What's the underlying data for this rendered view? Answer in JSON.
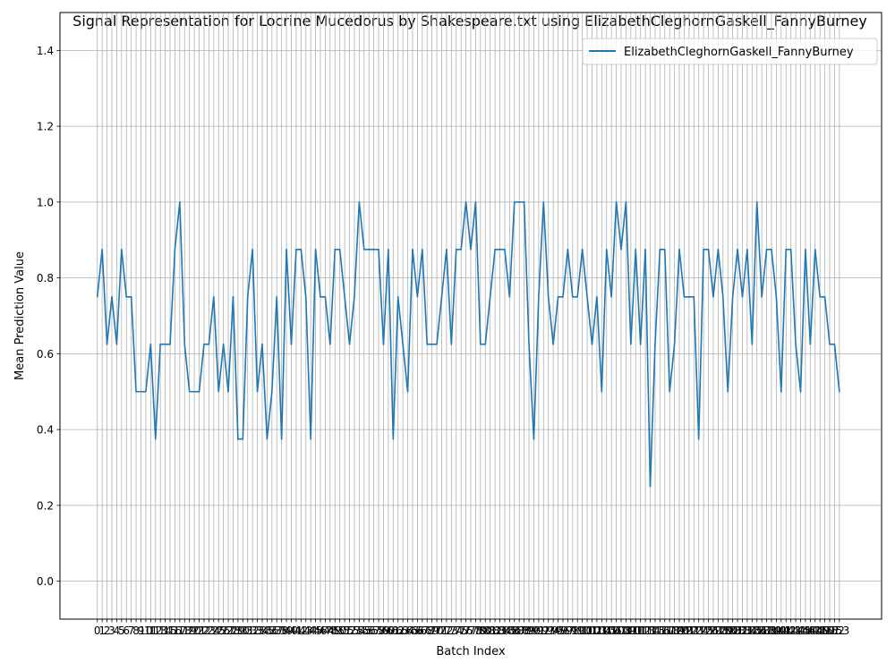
{
  "chart_data": {
    "type": "line",
    "title": "Signal Representation for Locrine Mucedorus by Shakespeare.txt using ElizabethCleghornGaskell_FannyBurney",
    "xlabel": "Batch Index",
    "ylabel": "Mean Prediction Value",
    "xlim": [
      -7.7,
      161.7
    ],
    "ylim": [
      -0.1,
      1.5
    ],
    "yticks": [
      0.0,
      0.2,
      0.4,
      0.6,
      0.8,
      1.0,
      1.2,
      1.4
    ],
    "ytick_labels": [
      "0.0",
      "0.2",
      "0.4",
      "0.6",
      "0.8",
      "1.0",
      "1.2",
      "1.4"
    ],
    "grid": true,
    "legend_position": "upper-right",
    "series": [
      {
        "name": "ElizabethCleghornGaskell_FannyBurney",
        "color": "#1f77b4",
        "values": [
          0.75,
          0.875,
          0.625,
          0.75,
          0.625,
          0.875,
          0.75,
          0.75,
          0.5,
          0.5,
          0.5,
          0.625,
          0.375,
          0.625,
          0.625,
          0.625,
          0.875,
          1.0,
          0.625,
          0.5,
          0.5,
          0.5,
          0.625,
          0.625,
          0.75,
          0.5,
          0.625,
          0.5,
          0.75,
          0.375,
          0.375,
          0.75,
          0.875,
          0.5,
          0.625,
          0.375,
          0.5,
          0.75,
          0.375,
          0.875,
          0.625,
          0.875,
          0.875,
          0.75,
          0.375,
          0.875,
          0.75,
          0.75,
          0.625,
          0.875,
          0.875,
          0.75,
          0.625,
          0.75,
          1.0,
          0.875,
          0.875,
          0.875,
          0.875,
          0.625,
          0.875,
          0.375,
          0.75,
          0.625,
          0.5,
          0.875,
          0.75,
          0.875,
          0.625,
          0.625,
          0.625,
          0.75,
          0.875,
          0.625,
          0.875,
          0.875,
          1.0,
          0.875,
          1.0,
          0.625,
          0.625,
          0.75,
          0.875,
          0.875,
          0.875,
          0.75,
          1.0,
          1.0,
          1.0,
          0.625,
          0.375,
          0.75,
          1.0,
          0.75,
          0.625,
          0.75,
          0.75,
          0.875,
          0.75,
          0.75,
          0.875,
          0.75,
          0.625,
          0.75,
          0.5,
          0.875,
          0.75,
          1.0,
          0.875,
          1.0,
          0.625,
          0.875,
          0.625,
          0.875,
          0.25,
          0.625,
          0.875,
          0.875,
          0.5,
          0.625,
          0.875,
          0.75,
          0.75,
          0.75,
          0.375,
          0.875,
          0.875,
          0.75,
          0.875,
          0.75,
          0.5,
          0.75,
          0.875,
          0.75,
          0.875,
          0.625,
          1.0,
          0.75,
          0.875,
          0.875,
          0.75,
          0.5,
          0.875,
          0.875,
          0.625,
          0.5,
          0.875,
          0.625,
          0.875,
          0.75,
          0.75,
          0.625,
          0.625,
          0.5
        ]
      }
    ]
  }
}
